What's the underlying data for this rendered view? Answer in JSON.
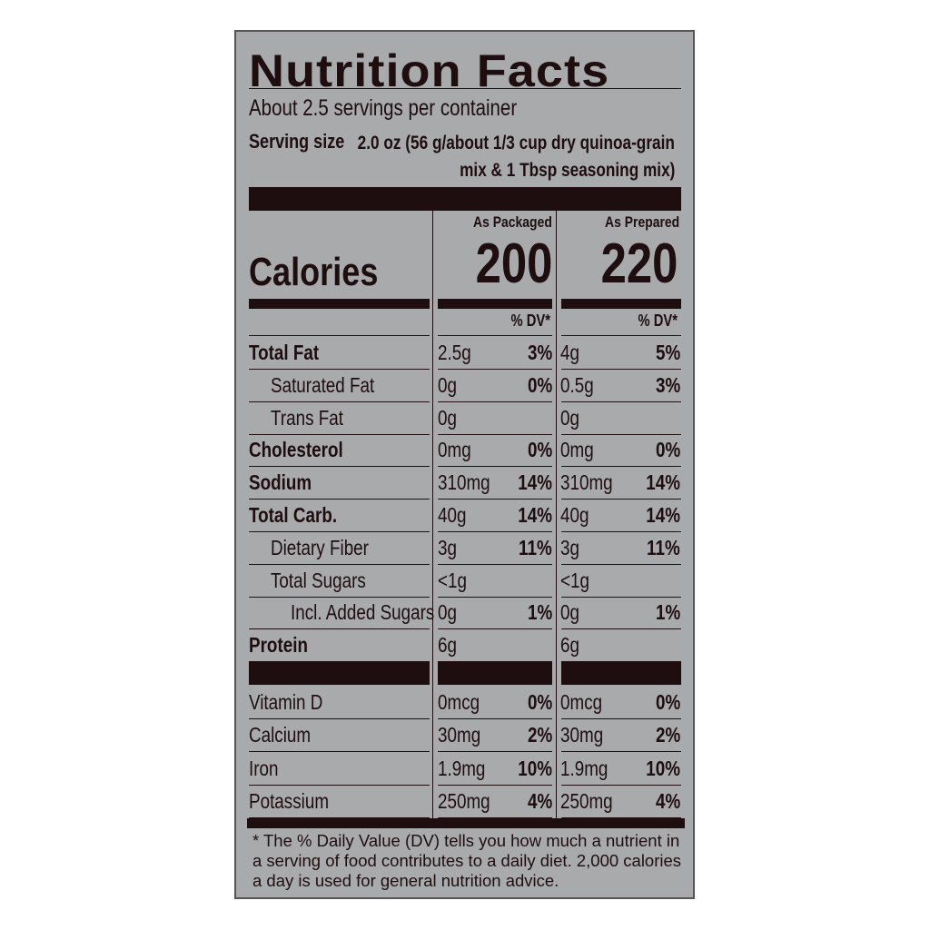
{
  "title": "Nutrition Facts",
  "servings_per_container": "About 2.5 servings per container",
  "serving_size": {
    "label": "Serving size",
    "value_line1": "2.0 oz (56 g/about 1/3 cup dry quinoa-grain",
    "value_line2": "mix & 1 Tbsp seasoning mix)"
  },
  "columns": [
    {
      "header": "As Packaged",
      "calories": "200",
      "dv_header": "% DV*"
    },
    {
      "header": "As Prepared",
      "calories": "220",
      "dv_header": "% DV*"
    }
  ],
  "calories_label": "Calories",
  "nutrients": [
    {
      "name": "Total Fat",
      "style": "bold",
      "packaged": "2.5g",
      "packaged_dv": "3%",
      "prepared": "4g",
      "prepared_dv": "5%"
    },
    {
      "name": "Saturated Fat",
      "style": "i1",
      "packaged": "0g",
      "packaged_dv": "0%",
      "prepared": "0.5g",
      "prepared_dv": "3%"
    },
    {
      "name": "Trans Fat",
      "style": "i1",
      "packaged": "0g",
      "packaged_dv": "",
      "prepared": "0g",
      "prepared_dv": ""
    },
    {
      "name": "Cholesterol",
      "style": "bold",
      "packaged": "0mg",
      "packaged_dv": "0%",
      "prepared": "0mg",
      "prepared_dv": "0%"
    },
    {
      "name": "Sodium",
      "style": "bold",
      "packaged": "310mg",
      "packaged_dv": "14%",
      "prepared": "310mg",
      "prepared_dv": "14%"
    },
    {
      "name": "Total Carb.",
      "style": "bold",
      "packaged": "40g",
      "packaged_dv": "14%",
      "prepared": "40g",
      "prepared_dv": "14%"
    },
    {
      "name": "Dietary Fiber",
      "style": "i1",
      "packaged": "3g",
      "packaged_dv": "11%",
      "prepared": "3g",
      "prepared_dv": "11%"
    },
    {
      "name": "Total Sugars",
      "style": "i1",
      "packaged": "<1g",
      "packaged_dv": "",
      "prepared": "<1g",
      "prepared_dv": ""
    },
    {
      "name": "Incl. Added Sugars",
      "style": "i2",
      "packaged": "0g",
      "packaged_dv": "1%",
      "prepared": "0g",
      "prepared_dv": "1%"
    },
    {
      "name": "Protein",
      "style": "bold",
      "packaged": "6g",
      "packaged_dv": "",
      "prepared": "6g",
      "prepared_dv": ""
    }
  ],
  "vitamins": [
    {
      "name": "Vitamin D",
      "packaged": "0mcg",
      "packaged_dv": "0%",
      "prepared": "0mcg",
      "prepared_dv": "0%"
    },
    {
      "name": "Calcium",
      "packaged": "30mg",
      "packaged_dv": "2%",
      "prepared": "30mg",
      "prepared_dv": "2%"
    },
    {
      "name": "Iron",
      "packaged": "1.9mg",
      "packaged_dv": "10%",
      "prepared": "1.9mg",
      "prepared_dv": "10%"
    },
    {
      "name": "Potassium",
      "packaged": "250mg",
      "packaged_dv": "4%",
      "prepared": "250mg",
      "prepared_dv": "4%"
    }
  ],
  "footnote": "* The % Daily Value (DV) tells you how much a nutrient in a serving of food contributes to a daily diet. 2,000 calories a day is used for general nutrition advice.",
  "colors": {
    "label_background": "#a9aaac",
    "ink": "#1e0e10"
  }
}
